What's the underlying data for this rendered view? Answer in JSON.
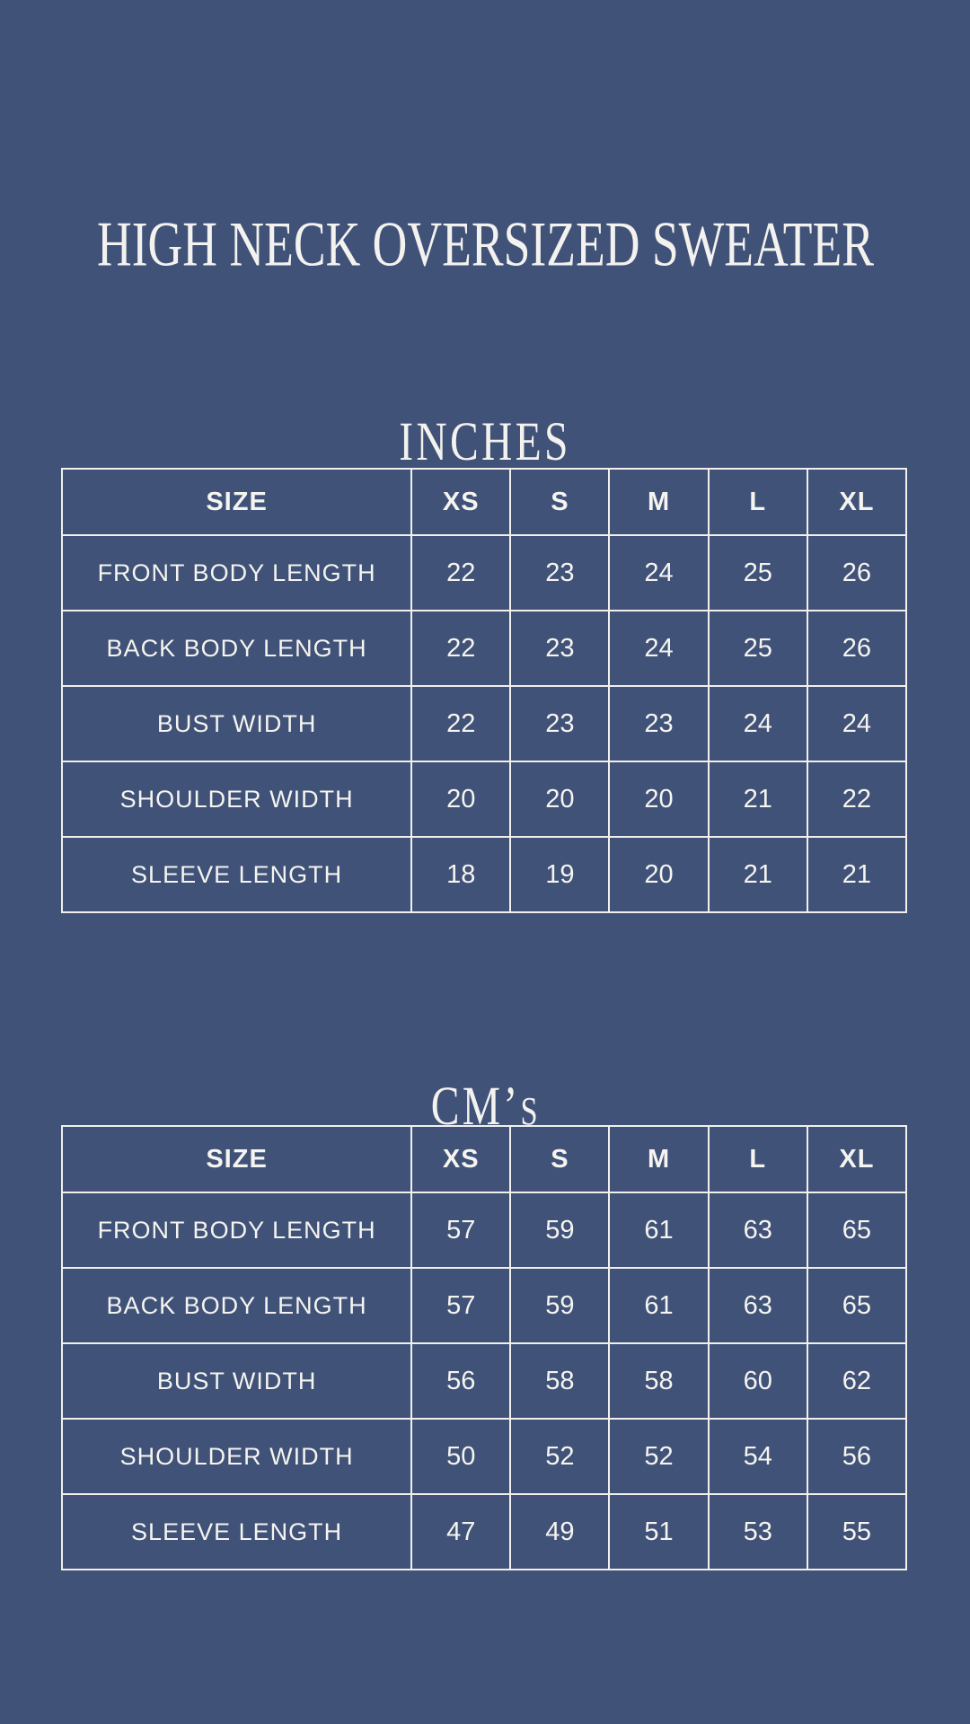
{
  "page": {
    "title": "HIGH NECK OVERSIZED SWEATER",
    "background_color": "#405278",
    "text_color": "#F5F4F0",
    "grid_line_color": "#F1F0EC"
  },
  "sections": [
    {
      "heading": "INCHES"
    },
    {
      "heading_prefix": "CM’",
      "heading_small": "S"
    }
  ],
  "chart_data": [
    {
      "type": "table",
      "title": "INCHES",
      "unit": "inches",
      "columns": [
        "SIZE",
        "XS",
        "S",
        "M",
        "L",
        "XL"
      ],
      "rows": [
        {
          "label": "FRONT BODY LENGTH",
          "values": [
            22,
            23,
            24,
            25,
            26
          ]
        },
        {
          "label": "BACK BODY LENGTH",
          "values": [
            22,
            23,
            24,
            25,
            26
          ]
        },
        {
          "label": "BUST WIDTH",
          "values": [
            22,
            23,
            23,
            24,
            24
          ]
        },
        {
          "label": "SHOULDER WIDTH",
          "values": [
            20,
            20,
            20,
            21,
            22
          ]
        },
        {
          "label": "SLEEVE LENGTH",
          "values": [
            18,
            19,
            20,
            21,
            21
          ]
        }
      ]
    },
    {
      "type": "table",
      "title": "CM’S",
      "unit": "cm",
      "columns": [
        "SIZE",
        "XS",
        "S",
        "M",
        "L",
        "XL"
      ],
      "rows": [
        {
          "label": "FRONT BODY LENGTH",
          "values": [
            57,
            59,
            61,
            63,
            65
          ]
        },
        {
          "label": "BACK BODY LENGTH",
          "values": [
            57,
            59,
            61,
            63,
            65
          ]
        },
        {
          "label": "BUST WIDTH",
          "values": [
            56,
            58,
            58,
            60,
            62
          ]
        },
        {
          "label": "SHOULDER WIDTH",
          "values": [
            50,
            52,
            52,
            54,
            56
          ]
        },
        {
          "label": "SLEEVE LENGTH",
          "values": [
            47,
            49,
            51,
            53,
            55
          ]
        }
      ]
    }
  ]
}
